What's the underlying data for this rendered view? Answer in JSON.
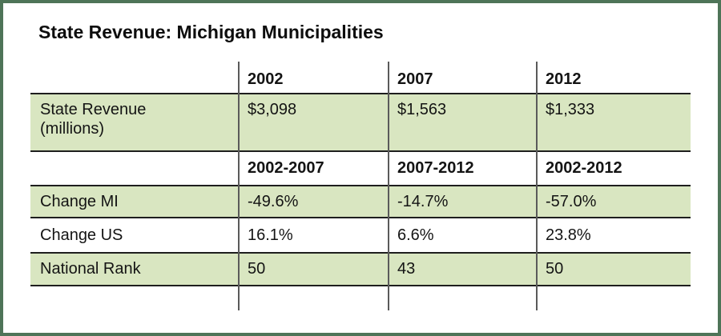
{
  "colors": {
    "frame_border": "#4e7458",
    "row_highlight": "#d9e6c1",
    "grid_line": "#5a5a5a",
    "rule_line": "#1e1e1e",
    "text": "#141414"
  },
  "chart_data": {
    "type": "table",
    "title": "State Revenue: Michigan Municipalities",
    "layout": {
      "highlighted_rows": [
        "State Revenue (millions)",
        "Change MI",
        "National Rank"
      ],
      "column_dividers": true,
      "legend": "none"
    },
    "sections": [
      {
        "columns": [
          "2002",
          "2007",
          "2012"
        ],
        "rows": [
          {
            "label": "State Revenue (millions)",
            "label_display": "State Revenue\n(millions)",
            "values": [
              "$3,098",
              "$1,563",
              "$1,333"
            ]
          }
        ]
      },
      {
        "columns": [
          "2002-2007",
          "2007-2012",
          "2002-2012"
        ],
        "rows": [
          {
            "label": "Change MI",
            "values": [
              "-49.6%",
              "-14.7%",
              "-57.0%"
            ]
          },
          {
            "label": "Change US",
            "values": [
              "16.1%",
              "6.6%",
              "23.8%"
            ]
          },
          {
            "label": "National Rank",
            "values": [
              "50",
              "43",
              "50"
            ]
          }
        ]
      }
    ]
  }
}
